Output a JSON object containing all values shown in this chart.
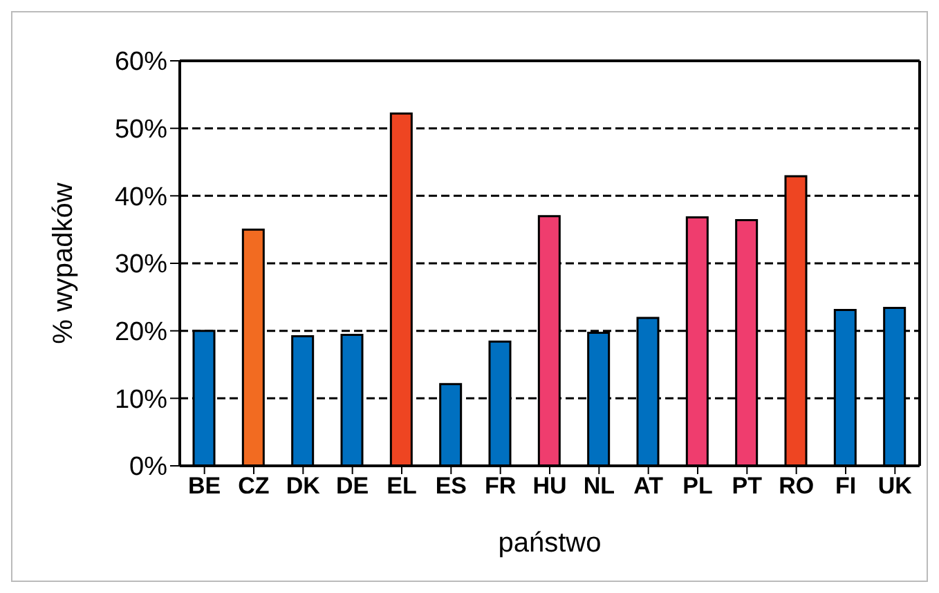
{
  "chart_data": {
    "type": "bar",
    "ylabel": "% wypadków",
    "xlabel": "państwo",
    "categories": [
      "BE",
      "CZ",
      "DK",
      "DE",
      "EL",
      "ES",
      "FR",
      "HU",
      "NL",
      "AT",
      "PL",
      "PT",
      "RO",
      "FI",
      "UK"
    ],
    "values": [
      20.0,
      35.0,
      19.2,
      19.4,
      52.2,
      12.1,
      18.4,
      37.0,
      19.7,
      21.9,
      36.8,
      36.4,
      42.9,
      23.1,
      23.4
    ],
    "colors": [
      "#0070c0",
      "#f26b21",
      "#0070c0",
      "#0070c0",
      "#ee4522",
      "#0070c0",
      "#0070c0",
      "#ef3d6e",
      "#0070c0",
      "#0070c0",
      "#ef3d6e",
      "#ef3d6e",
      "#ee4522",
      "#0070c0",
      "#0070c0"
    ],
    "ylim": [
      0,
      60
    ],
    "yticks": [
      {
        "value": 0,
        "label": "0%"
      },
      {
        "value": 10,
        "label": "10%"
      },
      {
        "value": 20,
        "label": "20%"
      },
      {
        "value": 30,
        "label": "30%"
      },
      {
        "value": 40,
        "label": "40%"
      },
      {
        "value": 50,
        "label": "50%"
      },
      {
        "value": 60,
        "label": "60%"
      }
    ],
    "grid": "y",
    "legend": false
  }
}
